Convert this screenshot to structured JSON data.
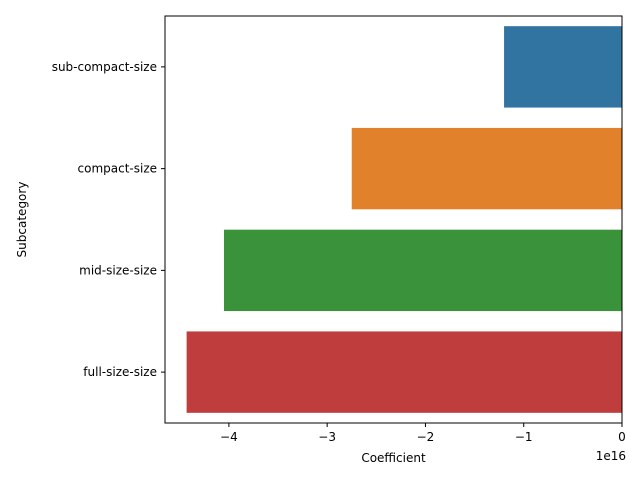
{
  "chart_data": {
    "type": "bar",
    "orientation": "horizontal",
    "categories": [
      "sub-compact-size",
      "compact-size",
      "mid-size-size",
      "full-size-size"
    ],
    "values": [
      -1.2e+16,
      -2.75e+16,
      -4.05e+16,
      -4.43e+16
    ],
    "colors": [
      "#3274a1",
      "#e1812c",
      "#3a923a",
      "#c03d3e"
    ],
    "xlabel": "Coefficient",
    "ylabel": "Subcategory",
    "x_offset_label": "1e16",
    "x_scale": 1e+16,
    "xlim": [
      -4.65,
      0
    ],
    "x_ticks": [
      -4,
      -3,
      -2,
      -1,
      0
    ],
    "x_tick_labels": [
      "−4",
      "−3",
      "−2",
      "−1",
      "0"
    ],
    "grid": false,
    "legend": "none"
  }
}
